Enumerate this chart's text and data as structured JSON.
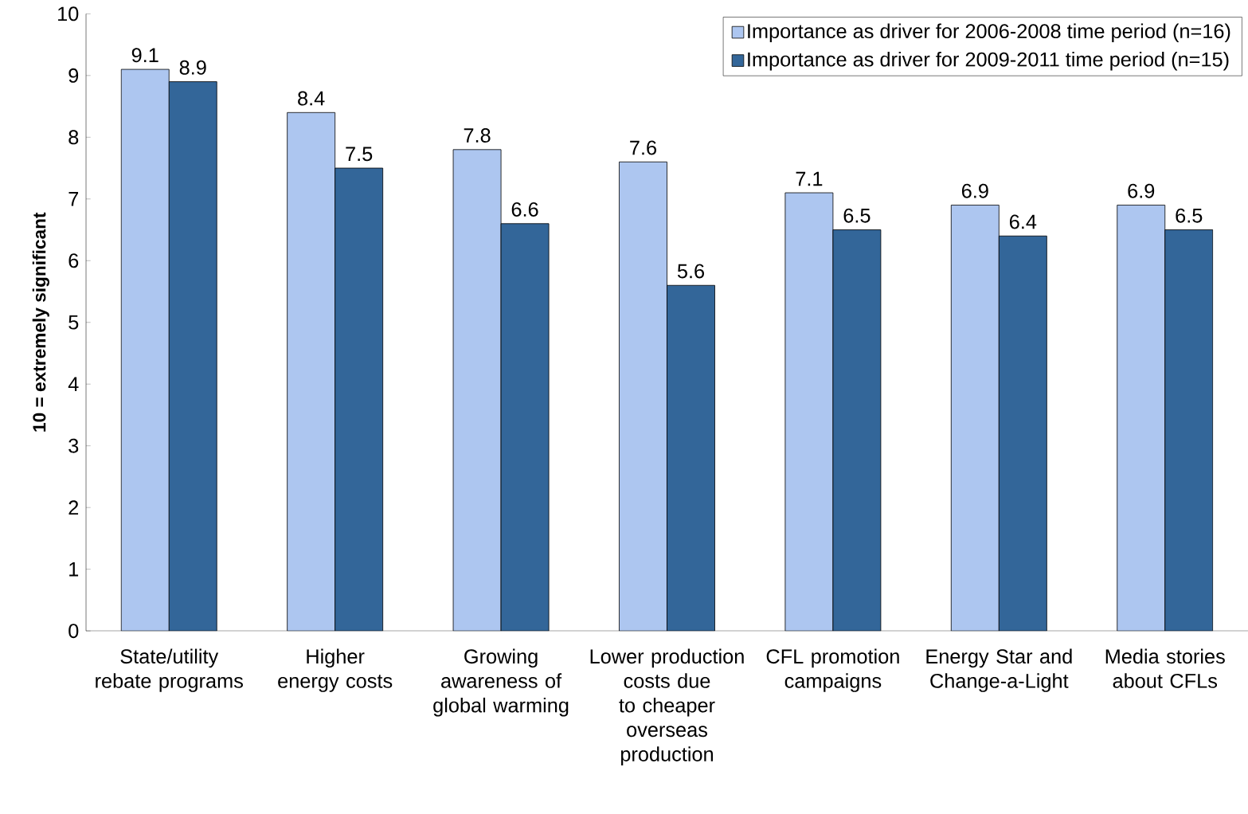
{
  "chart_data": {
    "type": "bar",
    "ylabel": "10 = extremely significant",
    "categories": [
      "State/utility rebate programs",
      "Higher energy costs",
      "Growing awareness of global warming",
      "Lower production costs due to cheaper overseas production",
      "CFL promotion campaigns",
      "Energy Star and Change-a-Light",
      "Media stories about CFLs"
    ],
    "series": [
      {
        "name": "Importance as driver for 2006-2008 time period (n=16)",
        "color": "#adc6f0",
        "values": [
          9.1,
          8.4,
          7.8,
          7.6,
          7.1,
          6.9,
          6.9
        ]
      },
      {
        "name": "Importance as driver for 2009-2011 time period (n=15)",
        "color": "#336699",
        "values": [
          8.9,
          7.5,
          6.6,
          5.6,
          6.5,
          6.4,
          6.5
        ]
      }
    ],
    "ylim": [
      0,
      10
    ],
    "yticks": [
      0,
      1,
      2,
      3,
      4,
      5,
      6,
      7,
      8,
      9,
      10
    ],
    "data_labels": true,
    "legend": "top right",
    "grid": false
  }
}
